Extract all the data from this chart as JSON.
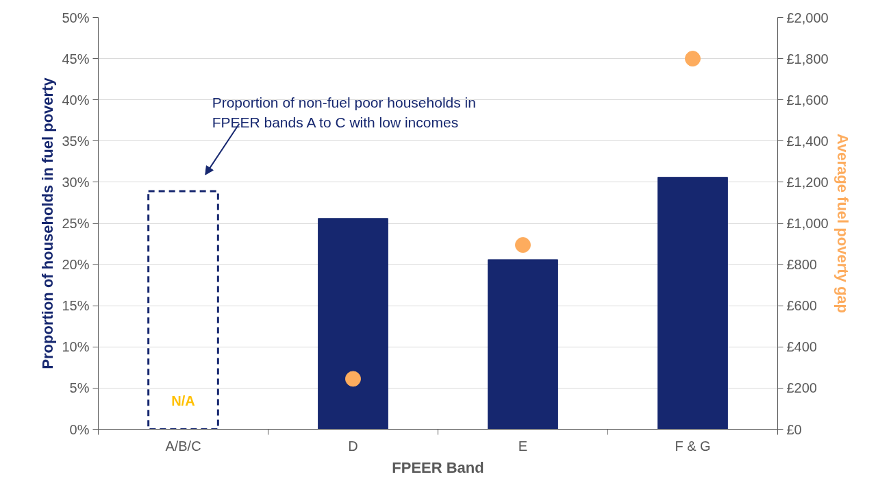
{
  "chart_data": {
    "type": "bar",
    "xlabel": "FPEER Band",
    "ylabel": "Proportion of households in fuel poverty",
    "y2label": "Average fuel poverty gap",
    "categories": [
      "A/B/C",
      "D",
      "E",
      "F & G"
    ],
    "series": [
      {
        "color": "#16276f",
        "values": [
          null,
          25.6,
          20.6,
          30.6
        ]
      },
      {
        "color": "#16276f",
        "line_style": "dashed",
        "values": [
          28.9,
          null,
          null,
          null
        ]
      },
      {
        "type": "scatter",
        "axis": "y2",
        "marker": "circle",
        "color": "#fdac5e",
        "values": [
          null,
          245,
          895,
          1800
        ]
      }
    ],
    "ylim": [
      0,
      50
    ],
    "yticks": [
      {
        "value": 0,
        "label": "0%"
      },
      {
        "value": 5,
        "label": "5%"
      },
      {
        "value": 10,
        "label": "10%"
      },
      {
        "value": 15,
        "label": "15%"
      },
      {
        "value": 20,
        "label": "20%"
      },
      {
        "value": 25,
        "label": "25%"
      },
      {
        "value": 30,
        "label": "30%"
      },
      {
        "value": 35,
        "label": "35%"
      },
      {
        "value": 40,
        "label": "40%"
      },
      {
        "value": 45,
        "label": "45%"
      },
      {
        "value": 50,
        "label": "50%"
      }
    ],
    "y2lim": [
      0,
      2000
    ],
    "y2ticks": [
      {
        "value": 0,
        "label": "£0"
      },
      {
        "value": 200,
        "label": "£200"
      },
      {
        "value": 400,
        "label": "£400"
      },
      {
        "value": 600,
        "label": "£600"
      },
      {
        "value": 800,
        "label": "£800"
      },
      {
        "value": 1000,
        "label": "£1,000"
      },
      {
        "value": 1200,
        "label": "£1,200"
      },
      {
        "value": 1400,
        "label": "£1,400"
      },
      {
        "value": 1600,
        "label": "£1,600"
      },
      {
        "value": 1800,
        "label": "£1,800"
      },
      {
        "value": 2000,
        "label": "£2,000"
      }
    ],
    "grid": "y",
    "annotations": [
      "Proportion of non-fuel poor households in\nFPEER bands A to C with low incomes",
      "N/A"
    ]
  }
}
